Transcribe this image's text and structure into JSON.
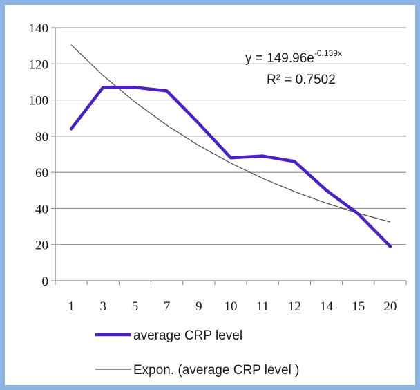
{
  "chart_data": {
    "type": "line",
    "categories": [
      "1",
      "3",
      "5",
      "7",
      "9",
      "10",
      "11",
      "12",
      "14",
      "15",
      "20"
    ],
    "series": [
      {
        "name": "average CRP level",
        "values": [
          84,
          107,
          107,
          105,
          87,
          68,
          69,
          66,
          50,
          37,
          19
        ],
        "color": "#4b1fc8"
      },
      {
        "name": "Expon. (average CRP level )",
        "values": [
          130.5,
          113.5,
          98.8,
          86.0,
          74.8,
          65.1,
          56.6,
          49.3,
          42.9,
          37.3,
          32.5
        ],
        "color": "#555555"
      }
    ],
    "trendline": {
      "equation_base": "y = 149.96e",
      "equation_exponent": "-0.139x",
      "r_squared": "R² = 0.7502"
    },
    "yticks": [
      "0",
      "20",
      "40",
      "60",
      "80",
      "100",
      "120",
      "140"
    ],
    "ylim": [
      0,
      140
    ],
    "grid": "horizontal",
    "legend_position": "bottom",
    "background_color": "#8db3e2",
    "plot_background": "#ffffff"
  }
}
